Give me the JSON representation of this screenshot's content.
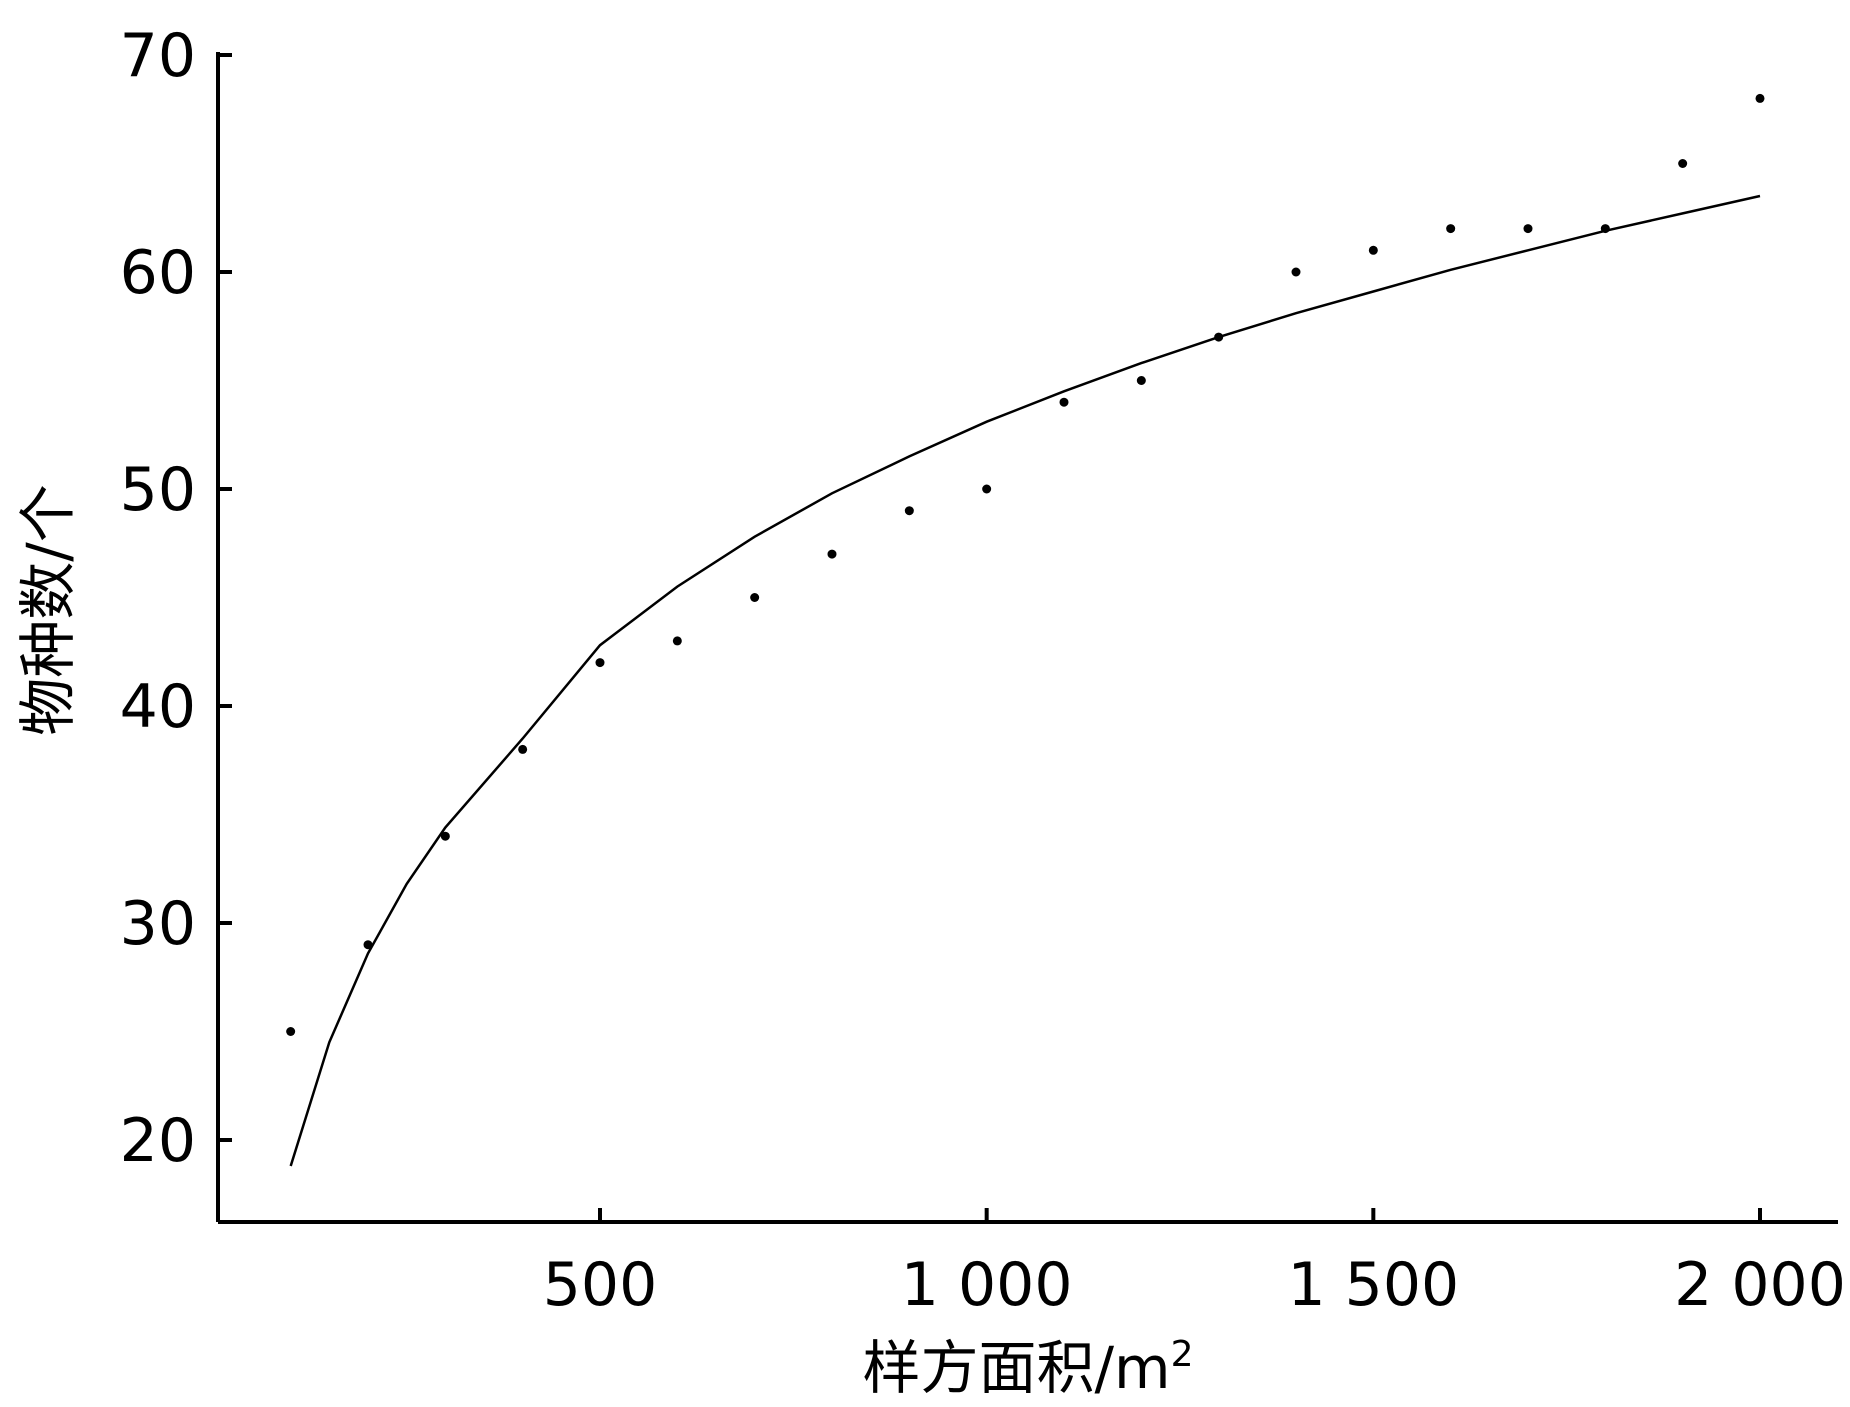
{
  "chart_data": {
    "type": "scatter",
    "title": "",
    "xlabel": "样方面积/m",
    "xlabel_superscript": "2",
    "ylabel": "物种数/个",
    "xlim": [
      0,
      2100
    ],
    "ylim": [
      16,
      70
    ],
    "x_ticks": [
      500,
      1000,
      1500,
      2000
    ],
    "x_tick_labels": [
      "500",
      "1 000",
      "1 500",
      "2 000"
    ],
    "y_ticks": [
      20,
      30,
      40,
      50,
      60,
      70
    ],
    "y_tick_labels": [
      "20",
      "30",
      "40",
      "50",
      "60",
      "70"
    ],
    "grid": false,
    "legend": "none",
    "series": [
      {
        "kind": "points",
        "x": [
          100,
          200,
          300,
          400,
          500,
          600,
          700,
          800,
          900,
          1000,
          1100,
          1200,
          1300,
          1400,
          1500,
          1600,
          1700,
          1800,
          1900,
          2000
        ],
        "y": [
          25,
          29,
          34,
          38,
          42,
          43,
          45,
          47,
          49,
          50,
          54,
          55,
          57,
          60,
          61,
          62,
          62,
          62,
          65,
          68
        ]
      },
      {
        "kind": "fitted-curve",
        "x": [
          100,
          150,
          200,
          250,
          300,
          400,
          500,
          600,
          700,
          800,
          900,
          1000,
          1100,
          1200,
          1300,
          1400,
          1500,
          1600,
          1700,
          1800,
          1900,
          2000
        ],
        "y": [
          18.8,
          24.5,
          28.6,
          31.8,
          34.4,
          38.5,
          42.8,
          45.5,
          47.8,
          49.8,
          51.5,
          53.1,
          54.5,
          55.8,
          57.0,
          58.1,
          59.1,
          60.1,
          61.0,
          61.9,
          62.7,
          63.5
        ]
      }
    ],
    "colors": {
      "axis": "#000000",
      "marks": "#000000"
    }
  }
}
